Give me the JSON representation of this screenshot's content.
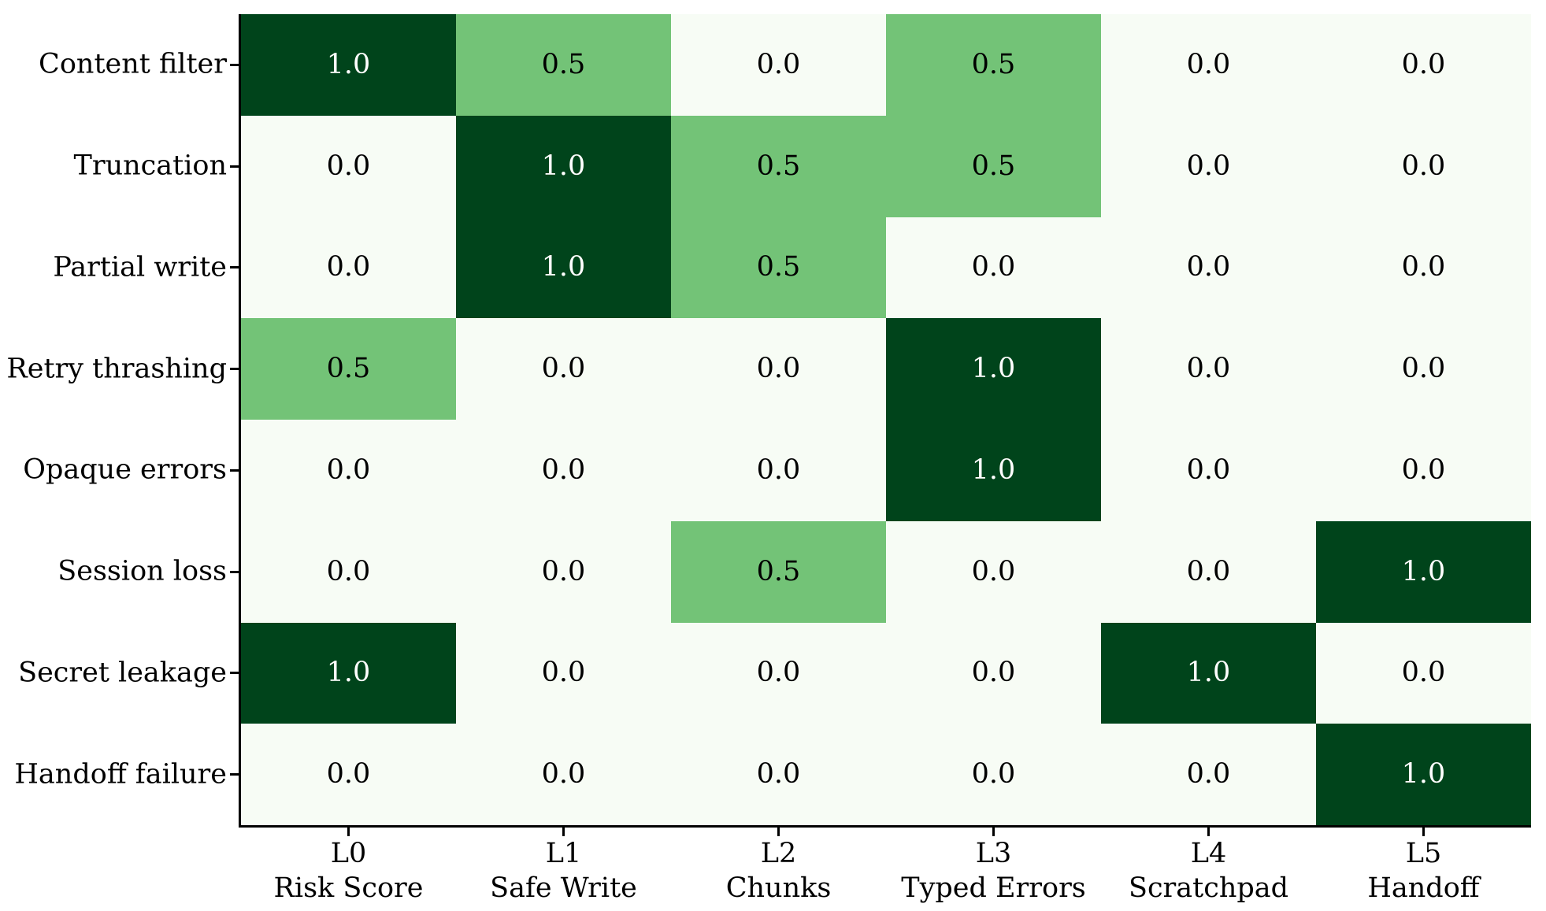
{
  "chart_data": {
    "type": "heatmap",
    "rows": [
      "Content filter",
      "Truncation",
      "Partial write",
      "Retry thrashing",
      "Opaque errors",
      "Session loss",
      "Secret leakage",
      "Handoff failure"
    ],
    "columns": [
      {
        "tier": "L0",
        "name": "Risk Score"
      },
      {
        "tier": "L1",
        "name": "Safe Write"
      },
      {
        "tier": "L2",
        "name": "Chunks"
      },
      {
        "tier": "L3",
        "name": "Typed Errors"
      },
      {
        "tier": "L4",
        "name": "Scratchpad"
      },
      {
        "tier": "L5",
        "name": "Handoff"
      }
    ],
    "matrix": [
      [
        1.0,
        0.5,
        0.0,
        0.5,
        0.0,
        0.0
      ],
      [
        0.0,
        1.0,
        0.5,
        0.5,
        0.0,
        0.0
      ],
      [
        0.0,
        1.0,
        0.5,
        0.0,
        0.0,
        0.0
      ],
      [
        0.5,
        0.0,
        0.0,
        1.0,
        0.0,
        0.0
      ],
      [
        0.0,
        0.0,
        0.0,
        1.0,
        0.0,
        0.0
      ],
      [
        0.0,
        0.0,
        0.5,
        0.0,
        0.0,
        1.0
      ],
      [
        1.0,
        0.0,
        0.0,
        0.0,
        1.0,
        0.0
      ],
      [
        0.0,
        0.0,
        0.0,
        0.0,
        0.0,
        1.0
      ]
    ],
    "value_range": [
      0,
      1
    ],
    "colormap": {
      "name": "Greens",
      "stops": {
        "0": "#f7fcf5",
        "0.5": "#73c377",
        "1": "#00441b"
      }
    },
    "text_color_on_dark": "#ffffff",
    "text_color_on_light": "#000000",
    "grid": "off",
    "legend": "none",
    "title": "",
    "xlabel": "",
    "ylabel": ""
  }
}
